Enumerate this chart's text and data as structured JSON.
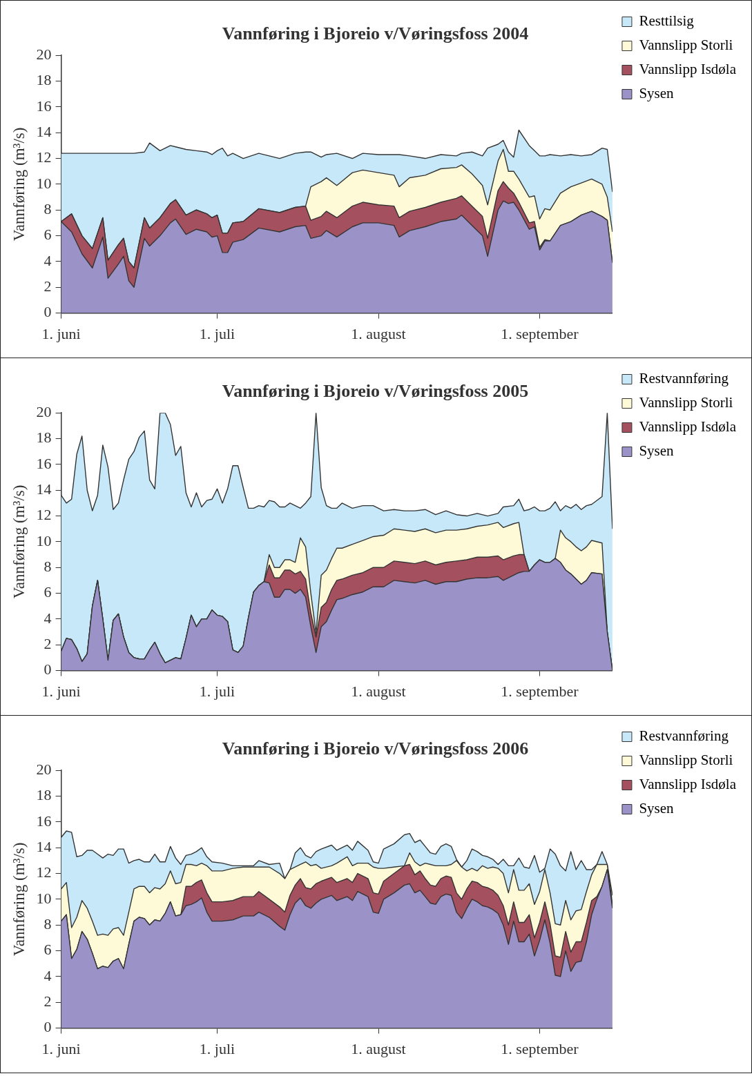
{
  "chart_data": [
    {
      "type": "area",
      "title": "Vannføring i Bjoreio v/Vøringsfoss 2004",
      "ylabel": "Vannføring (m³/s)",
      "stacked": true,
      "legend": "right",
      "marker": "none",
      "ylim": [
        0,
        20
      ],
      "yticks": [
        0,
        2,
        4,
        6,
        8,
        10,
        12,
        14,
        16,
        18,
        20
      ],
      "xlim": [
        "2004-06-01",
        "2004-09-15"
      ],
      "xticks": [
        {
          "value": "2004-06-01",
          "label": "1. juni"
        },
        {
          "value": "2004-07-01",
          "label": "1. juli"
        },
        {
          "value": "2004-08-01",
          "label": "1. august"
        },
        {
          "value": "2004-09-01",
          "label": "1. september"
        }
      ],
      "x": [
        "2004-06-01",
        "2004-06-03",
        "2004-06-05",
        "2004-06-07",
        "2004-06-09",
        "2004-06-10",
        "2004-06-12",
        "2004-06-13",
        "2004-06-14",
        "2004-06-15",
        "2004-06-17",
        "2004-06-18",
        "2004-06-20",
        "2004-06-22",
        "2004-06-23",
        "2004-06-25",
        "2004-06-27",
        "2004-06-29",
        "2004-06-30",
        "2004-07-01",
        "2004-07-02",
        "2004-07-03",
        "2004-07-04",
        "2004-07-06",
        "2004-07-09",
        "2004-07-13",
        "2004-07-16",
        "2004-07-18",
        "2004-07-19",
        "2004-07-21",
        "2004-07-22",
        "2004-07-24",
        "2004-07-27",
        "2004-07-29",
        "2004-08-01",
        "2004-08-04",
        "2004-08-05",
        "2004-08-07",
        "2004-08-10",
        "2004-08-13",
        "2004-08-16",
        "2004-08-17",
        "2004-08-19",
        "2004-08-21",
        "2004-08-22",
        "2004-08-24",
        "2004-08-25",
        "2004-08-26",
        "2004-08-27",
        "2004-08-28",
        "2004-08-30",
        "2004-08-31",
        "2004-09-01",
        "2004-09-02",
        "2004-09-03",
        "2004-09-05",
        "2004-09-07",
        "2004-09-09",
        "2004-09-11",
        "2004-09-13",
        "2004-09-14",
        "2004-09-15"
      ],
      "series": [
        {
          "name": "Sysen",
          "color": "#9b93c8",
          "values": [
            7.1,
            6.3,
            4.6,
            3.5,
            5.9,
            2.7,
            3.8,
            4.4,
            2.5,
            2.0,
            5.8,
            5.2,
            6.0,
            7.0,
            7.3,
            6.1,
            6.5,
            6.3,
            5.9,
            6.0,
            4.7,
            4.7,
            5.5,
            5.7,
            6.6,
            6.3,
            6.7,
            6.8,
            5.8,
            6.0,
            6.4,
            5.9,
            6.7,
            7.0,
            7.0,
            6.8,
            5.9,
            6.4,
            6.7,
            7.1,
            7.3,
            7.6,
            6.8,
            6.0,
            4.4,
            8.0,
            8.7,
            8.5,
            8.6,
            8.0,
            6.5,
            6.7,
            4.9,
            5.6,
            5.6,
            6.8,
            7.1,
            7.6,
            7.9,
            7.5,
            7.2,
            3.9
          ]
        },
        {
          "name": "Vannslipp Isdøla",
          "color": "#a5505f",
          "values": [
            0,
            1.4,
            1.4,
            1.5,
            1.5,
            1.4,
            1.5,
            1.4,
            1.5,
            1.5,
            1.6,
            1.4,
            1.4,
            1.5,
            1.5,
            1.5,
            1.5,
            1.4,
            1.5,
            1.6,
            1.5,
            1.5,
            1.5,
            1.4,
            1.5,
            1.5,
            1.5,
            1.5,
            1.4,
            1.5,
            1.5,
            1.5,
            1.6,
            1.6,
            1.4,
            1.5,
            1.5,
            1.5,
            1.5,
            1.5,
            1.6,
            1.5,
            1.5,
            1.5,
            1.4,
            1.5,
            1.5,
            1.2,
            0.7,
            0.6,
            0.5,
            0.4,
            0.2,
            0.1,
            0,
            0,
            0,
            0,
            0,
            0,
            0,
            0
          ]
        },
        {
          "name": "Vannslipp Storli",
          "color": "#fef9d6",
          "values": [
            0,
            0,
            0,
            0,
            0,
            0,
            0,
            0,
            0,
            0,
            0,
            0,
            0,
            0,
            0,
            0,
            0,
            0,
            0,
            0,
            0,
            0,
            0,
            0,
            0,
            0,
            0,
            0,
            2.6,
            2.7,
            2.6,
            2.5,
            2.6,
            2.5,
            2.5,
            2.4,
            2.4,
            2.6,
            2.5,
            2.6,
            2.4,
            2.4,
            2.5,
            2.4,
            2.6,
            2.3,
            2.5,
            1.3,
            1.7,
            1.8,
            2.0,
            2.0,
            2.2,
            2.4,
            2.4,
            2.5,
            2.7,
            2.5,
            2.5,
            2.5,
            1.8,
            2.4
          ]
        },
        {
          "name": "Resttilsig",
          "color": "#c6e8f8",
          "values": [
            5.3,
            4.7,
            6.4,
            7.4,
            5.0,
            8.3,
            7.1,
            6.6,
            8.4,
            8.9,
            5.1,
            6.6,
            5.2,
            4.5,
            4.1,
            5.1,
            4.6,
            4.8,
            4.9,
            5.0,
            6.6,
            6.0,
            5.4,
            4.9,
            4.3,
            4.2,
            4.2,
            4.2,
            2.7,
            1.9,
            1.8,
            2.5,
            1.1,
            1.3,
            1.4,
            1.6,
            2.5,
            1.7,
            1.3,
            1.1,
            0.9,
            0.9,
            1.7,
            2.3,
            4.4,
            1.3,
            0.7,
            1.5,
            1.1,
            3.8,
            4.0,
            3.5,
            4.9,
            4.1,
            4.3,
            2.9,
            2.5,
            2.1,
            1.9,
            2.8,
            3.7,
            3.1
          ]
        }
      ]
    },
    {
      "type": "area",
      "title": "Vannføring i Bjoreio v/Vøringsfoss 2005",
      "ylabel": "Vannføring (m³/s)",
      "stacked": true,
      "legend": "right",
      "marker": "none",
      "ylim": [
        0,
        20
      ],
      "yticks": [
        0,
        2,
        4,
        6,
        8,
        10,
        12,
        14,
        16,
        18,
        20
      ],
      "xlim": [
        "2005-06-01",
        "2005-09-15"
      ],
      "xticks": [
        {
          "value": "2005-06-01",
          "label": "1. juni"
        },
        {
          "value": "2005-07-01",
          "label": "1. juli"
        },
        {
          "value": "2005-08-01",
          "label": "1. august"
        },
        {
          "value": "2005-09-01",
          "label": "1. september"
        }
      ],
      "x": [
        "2005-06-01",
        "2005-06-02",
        "2005-06-03",
        "2005-06-04",
        "2005-06-05",
        "2005-06-06",
        "2005-06-07",
        "2005-06-08",
        "2005-06-09",
        "2005-06-10",
        "2005-06-11",
        "2005-06-12",
        "2005-06-13",
        "2005-06-14",
        "2005-06-15",
        "2005-06-16",
        "2005-06-17",
        "2005-06-18",
        "2005-06-19",
        "2005-06-20",
        "2005-06-21",
        "2005-06-22",
        "2005-06-23",
        "2005-06-24",
        "2005-06-25",
        "2005-06-26",
        "2005-06-27",
        "2005-06-28",
        "2005-06-29",
        "2005-06-30",
        "2005-07-01",
        "2005-07-02",
        "2005-07-03",
        "2005-07-04",
        "2005-07-05",
        "2005-07-06",
        "2005-07-07",
        "2005-07-08",
        "2005-07-09",
        "2005-07-10",
        "2005-07-11",
        "2005-07-12",
        "2005-07-13",
        "2005-07-14",
        "2005-07-15",
        "2005-07-16",
        "2005-07-17",
        "2005-07-18",
        "2005-07-19",
        "2005-07-20",
        "2005-07-21",
        "2005-07-22",
        "2005-07-23",
        "2005-07-24",
        "2005-07-25",
        "2005-07-27",
        "2005-07-29",
        "2005-07-31",
        "2005-08-02",
        "2005-08-04",
        "2005-08-06",
        "2005-08-08",
        "2005-08-10",
        "2005-08-12",
        "2005-08-14",
        "2005-08-16",
        "2005-08-18",
        "2005-08-20",
        "2005-08-22",
        "2005-08-24",
        "2005-08-25",
        "2005-08-27",
        "2005-08-28",
        "2005-08-29",
        "2005-08-30",
        "2005-08-31",
        "2005-09-01",
        "2005-09-02",
        "2005-09-03",
        "2005-09-04",
        "2005-09-05",
        "2005-09-06",
        "2005-09-07",
        "2005-09-08",
        "2005-09-09",
        "2005-09-10",
        "2005-09-11",
        "2005-09-13",
        "2005-09-14",
        "2005-09-15"
      ],
      "series": [
        {
          "name": "Sysen",
          "color": "#9b93c8",
          "values": [
            1.5,
            2.5,
            2.4,
            1.7,
            0.7,
            1.3,
            5.0,
            7.0,
            4.0,
            0.8,
            3.9,
            4.4,
            2.6,
            1.4,
            1.0,
            0.9,
            0.9,
            1.6,
            2.2,
            1.3,
            0.6,
            0.8,
            1.0,
            0.9,
            2.5,
            4.3,
            3.4,
            4.0,
            4.0,
            4.7,
            4.3,
            4.2,
            3.8,
            1.6,
            1.4,
            1.9,
            4.1,
            6.1,
            6.6,
            6.9,
            6.8,
            5.7,
            5.7,
            6.3,
            6.3,
            6.0,
            6.3,
            5.7,
            3.4,
            1.4,
            3.4,
            3.8,
            4.7,
            5.5,
            5.6,
            5.9,
            6.1,
            6.5,
            6.5,
            7.0,
            6.9,
            6.8,
            7.0,
            6.7,
            6.9,
            6.9,
            7.1,
            7.2,
            7.2,
            7.3,
            7.0,
            7.4,
            7.6,
            7.7,
            7.7,
            8.2,
            8.6,
            8.4,
            8.4,
            8.7,
            8.4,
            7.8,
            7.5,
            7.1,
            6.7,
            7.0,
            7.6,
            7.5,
            3.0,
            0
          ]
        },
        {
          "name": "Vannslipp Isdøla",
          "color": "#a5505f",
          "values": [
            0,
            0,
            0,
            0,
            0,
            0,
            0,
            0,
            0,
            0,
            0,
            0,
            0,
            0,
            0,
            0,
            0,
            0,
            0,
            0,
            0,
            0,
            0,
            0,
            0,
            0,
            0,
            0,
            0,
            0,
            0,
            0,
            0,
            0,
            0,
            0,
            0,
            0,
            0,
            0,
            1.4,
            1.5,
            1.5,
            1.5,
            1.5,
            1.5,
            1.4,
            1.4,
            1.1,
            1.2,
            1.5,
            1.5,
            1.6,
            1.5,
            1.5,
            1.5,
            1.5,
            1.5,
            1.5,
            1.5,
            1.5,
            1.5,
            1.5,
            1.5,
            1.5,
            1.6,
            1.5,
            1.6,
            1.6,
            1.6,
            1.6,
            1.5,
            1.4,
            1.3,
            0,
            0,
            0,
            0,
            0,
            0,
            0,
            0,
            0,
            0,
            0,
            0,
            0,
            0,
            0,
            0
          ]
        },
        {
          "name": "Vannslipp Storli",
          "color": "#fef9d6",
          "values": [
            0,
            0,
            0,
            0,
            0,
            0,
            0,
            0,
            0,
            0,
            0,
            0,
            0,
            0,
            0,
            0,
            0,
            0,
            0,
            0,
            0,
            0,
            0,
            0,
            0,
            0,
            0,
            0,
            0,
            0,
            0,
            0,
            0,
            0,
            0,
            0,
            0,
            0,
            0,
            0,
            0.8,
            0.8,
            0.8,
            0.8,
            0.8,
            0.9,
            2.6,
            2.5,
            1.5,
            0.3,
            2.5,
            2.5,
            2.4,
            2.5,
            2.4,
            2.4,
            2.5,
            2.4,
            2.5,
            2.5,
            2.5,
            2.5,
            2.5,
            2.5,
            2.5,
            2.4,
            2.4,
            2.4,
            2.5,
            2.6,
            2.5,
            2.5,
            2.5,
            0,
            0,
            0,
            0,
            0,
            0,
            0,
            2.5,
            2.5,
            2.5,
            2.5,
            2.6,
            2.6,
            2.5,
            2.4,
            0,
            0
          ]
        },
        {
          "name": "Restvannføring",
          "color": "#c6e8f8",
          "values": [
            12.1,
            10.5,
            10.9,
            15.1,
            17.5,
            12.7,
            7.4,
            6.6,
            13.5,
            15.0,
            8.6,
            8.6,
            12.2,
            15.0,
            16.0,
            17.2,
            17.7,
            13.2,
            11.9,
            18.7,
            19.4,
            18.3,
            15.7,
            16.5,
            11.3,
            8.4,
            10.4,
            8.7,
            9.2,
            8.6,
            9.8,
            8.8,
            10.3,
            14.3,
            14.5,
            12.3,
            8.5,
            6.5,
            6.2,
            5.8,
            4.2,
            5.1,
            4.7,
            4.1,
            4.4,
            4.4,
            2.3,
            3.4,
            7.5,
            17.1,
            6.8,
            5.0,
            3.9,
            3.1,
            3.5,
            2.8,
            2.7,
            2.4,
            1.9,
            1.5,
            1.5,
            1.6,
            1.5,
            1.4,
            1.5,
            1.2,
            1.0,
            1.0,
            0.7,
            0.7,
            1.6,
            1.4,
            1.8,
            3.4,
            4.8,
            4.5,
            3.8,
            4.0,
            4.2,
            4.4,
            1.5,
            2.5,
            2.6,
            3.3,
            3.2,
            3.2,
            2.8,
            3.6,
            17.0,
            11
          ]
        }
      ]
    },
    {
      "type": "area",
      "title": "Vannføring i Bjoreio v/Vøringsfoss 2006",
      "ylabel": "Vannføring (m³/s)",
      "stacked": true,
      "legend": "right",
      "marker": "none",
      "ylim": [
        0,
        20
      ],
      "yticks": [
        0,
        2,
        4,
        6,
        8,
        10,
        12,
        14,
        16,
        18,
        20
      ],
      "xlim": [
        "2006-06-01",
        "2006-09-15"
      ],
      "xticks": [
        {
          "value": "2006-06-01",
          "label": "1. juni"
        },
        {
          "value": "2006-07-01",
          "label": "1. juli"
        },
        {
          "value": "2006-08-01",
          "label": "1. august"
        },
        {
          "value": "2006-09-01",
          "label": "1. september"
        }
      ],
      "x": [
        "2006-06-01",
        "2006-06-02",
        "2006-06-03",
        "2006-06-04",
        "2006-06-05",
        "2006-06-06",
        "2006-06-07",
        "2006-06-08",
        "2006-06-09",
        "2006-06-10",
        "2006-06-11",
        "2006-06-12",
        "2006-06-13",
        "2006-06-14",
        "2006-06-15",
        "2006-06-16",
        "2006-06-17",
        "2006-06-18",
        "2006-06-19",
        "2006-06-20",
        "2006-06-21",
        "2006-06-22",
        "2006-06-23",
        "2006-06-24",
        "2006-06-25",
        "2006-06-26",
        "2006-06-27",
        "2006-06-28",
        "2006-06-29",
        "2006-06-30",
        "2006-07-02",
        "2006-07-04",
        "2006-07-06",
        "2006-07-08",
        "2006-07-09",
        "2006-07-11",
        "2006-07-13",
        "2006-07-14",
        "2006-07-15",
        "2006-07-16",
        "2006-07-17",
        "2006-07-18",
        "2006-07-19",
        "2006-07-20",
        "2006-07-21",
        "2006-07-23",
        "2006-07-24",
        "2006-07-26",
        "2006-07-27",
        "2006-07-28",
        "2006-07-30",
        "2006-07-31",
        "2006-08-01",
        "2006-08-02",
        "2006-08-04",
        "2006-08-06",
        "2006-08-07",
        "2006-08-08",
        "2006-08-09",
        "2006-08-10",
        "2006-08-11",
        "2006-08-12",
        "2006-08-13",
        "2006-08-14",
        "2006-08-15",
        "2006-08-16",
        "2006-08-17",
        "2006-08-18",
        "2006-08-19",
        "2006-08-20",
        "2006-08-21",
        "2006-08-22",
        "2006-08-23",
        "2006-08-24",
        "2006-08-25",
        "2006-08-26",
        "2006-08-27",
        "2006-08-28",
        "2006-08-29",
        "2006-08-30",
        "2006-08-31",
        "2006-09-01",
        "2006-09-02",
        "2006-09-03",
        "2006-09-04",
        "2006-09-05",
        "2006-09-06",
        "2006-09-07",
        "2006-09-08",
        "2006-09-09",
        "2006-09-10",
        "2006-09-11",
        "2006-09-12",
        "2006-09-13",
        "2006-09-14",
        "2006-09-15"
      ],
      "series": [
        {
          "name": "Sysen",
          "color": "#9b93c8",
          "values": [
            8.3,
            8.8,
            5.4,
            6.1,
            7.5,
            6.9,
            5.8,
            4.6,
            4.8,
            4.7,
            5.2,
            5.4,
            4.6,
            6.5,
            8.3,
            8.6,
            8.5,
            8.0,
            8.4,
            8.3,
            8.9,
            9.8,
            8.7,
            8.8,
            9.5,
            9.6,
            9.8,
            10.1,
            9.0,
            8.3,
            8.3,
            8.4,
            8.7,
            8.7,
            9.0,
            8.6,
            7.9,
            7.6,
            8.8,
            9.7,
            10.1,
            9.5,
            9.3,
            9.7,
            10.0,
            10.3,
            9.9,
            10.2,
            9.9,
            10.6,
            10.2,
            9.0,
            8.9,
            10.0,
            10.5,
            11.1,
            11.2,
            10.5,
            10.7,
            10.2,
            9.7,
            9.6,
            10.2,
            10.4,
            10.3,
            9.0,
            8.5,
            9.3,
            10.0,
            9.8,
            9.5,
            9.4,
            9.2,
            8.9,
            8.0,
            6.5,
            8.3,
            6.7,
            6.7,
            7.3,
            5.6,
            6.8,
            8.4,
            6.6,
            4.1,
            4.0,
            6.0,
            4.4,
            5.1,
            5.2,
            6.7,
            8.8,
            10.0,
            11.0,
            12.3,
            9.3
          ]
        },
        {
          "name": "Vannslipp Isdøla",
          "color": "#a5505f",
          "values": [
            0,
            0,
            0,
            0,
            0,
            0,
            0,
            0,
            0,
            0,
            0,
            0,
            0,
            0,
            0,
            0,
            0,
            0,
            0,
            0,
            0,
            0,
            0,
            0,
            1.5,
            1.4,
            1.5,
            1.4,
            1.5,
            1.5,
            1.5,
            1.5,
            1.5,
            1.5,
            1.6,
            1.4,
            1.5,
            1.4,
            1.5,
            1.4,
            1.5,
            1.4,
            1.5,
            1.5,
            1.4,
            1.4,
            1.4,
            1.4,
            1.4,
            1.4,
            1.4,
            1.5,
            1.5,
            1.4,
            1.5,
            1.5,
            1.5,
            1.4,
            1.5,
            1.4,
            1.4,
            1.4,
            1.4,
            1.4,
            1.4,
            1.5,
            1.5,
            1.5,
            1.4,
            1.5,
            1.5,
            1.5,
            1.5,
            1.4,
            1.5,
            1.5,
            1.5,
            1.5,
            1.5,
            1.5,
            1.4,
            1.4,
            1.4,
            1.5,
            1.5,
            1.5,
            1.5,
            1.5,
            1.6,
            1.5,
            1.5,
            1.1,
            0.2,
            0,
            0,
            0
          ]
        },
        {
          "name": "Vannslipp Storli",
          "color": "#fef9d6",
          "values": [
            2.5,
            2.5,
            2.4,
            2.5,
            2.4,
            2.4,
            2.5,
            2.6,
            2.5,
            2.5,
            2.5,
            2.4,
            2.6,
            2.5,
            2.5,
            2.4,
            2.5,
            2.5,
            2.5,
            2.5,
            2.3,
            2.4,
            2.5,
            2.5,
            1.7,
            1.7,
            1.3,
            1.3,
            2.1,
            2.4,
            2.4,
            2.5,
            2.3,
            2.3,
            1.9,
            2.5,
            2.6,
            2.6,
            2.0,
            1.4,
            1.1,
            2.0,
            1.8,
            1.5,
            1.0,
            0.9,
            1.5,
            1.7,
            1.3,
            0.8,
            1.2,
            2.0,
            2.0,
            1.0,
            0.5,
            0,
            0.9,
            1.0,
            0.4,
            1.2,
            1.6,
            1.6,
            1.0,
            0.8,
            1.0,
            2.5,
            2.5,
            1.4,
            1.0,
            0.9,
            1.6,
            1.5,
            1.8,
            2.1,
            2.5,
            2.5,
            2.5,
            2.5,
            2.5,
            2.4,
            2.6,
            2.4,
            2.5,
            2.4,
            2.5,
            2.5,
            2.4,
            2.5,
            2.4,
            2.5,
            2.4,
            2.0,
            2.5,
            1.7,
            0.4,
            0.3
          ]
        },
        {
          "name": "Restvannføring",
          "color": "#c6e8f8",
          "values": [
            4.0,
            4.0,
            7.4,
            4.7,
            3.5,
            4.5,
            5.5,
            6.3,
            5.9,
            6.3,
            5.7,
            6.1,
            6.7,
            3.8,
            2.2,
            2.1,
            1.9,
            2.4,
            2.6,
            2.1,
            1.7,
            1.9,
            2.0,
            1.4,
            0.7,
            0.8,
            1.1,
            1.2,
            0.7,
            0.7,
            0.6,
            0.2,
            0.1,
            0.1,
            0.5,
            0.2,
            0.8,
            0,
            0,
            1.1,
            1.3,
            0.5,
            0.6,
            1.0,
            1.5,
            1.6,
            1.0,
            0.9,
            1.2,
            1.7,
            1.0,
            0.4,
            0.4,
            1.5,
            1.8,
            2.4,
            1.5,
            1.5,
            2.0,
            1.3,
            0.9,
            0.9,
            1.5,
            1.7,
            1.4,
            0.1,
            0,
            0.8,
            1.5,
            1.5,
            0.8,
            0.9,
            0.6,
            0.3,
            1.1,
            2.1,
            0.3,
            2.5,
            1.8,
            1.2,
            3.8,
            1.5,
            0.1,
            3.4,
            5.4,
            4.6,
            2.3,
            5.3,
            3.2,
            3.8,
            1.7,
            0.4,
            0,
            1.0,
            0,
            0.7
          ]
        }
      ]
    }
  ]
}
